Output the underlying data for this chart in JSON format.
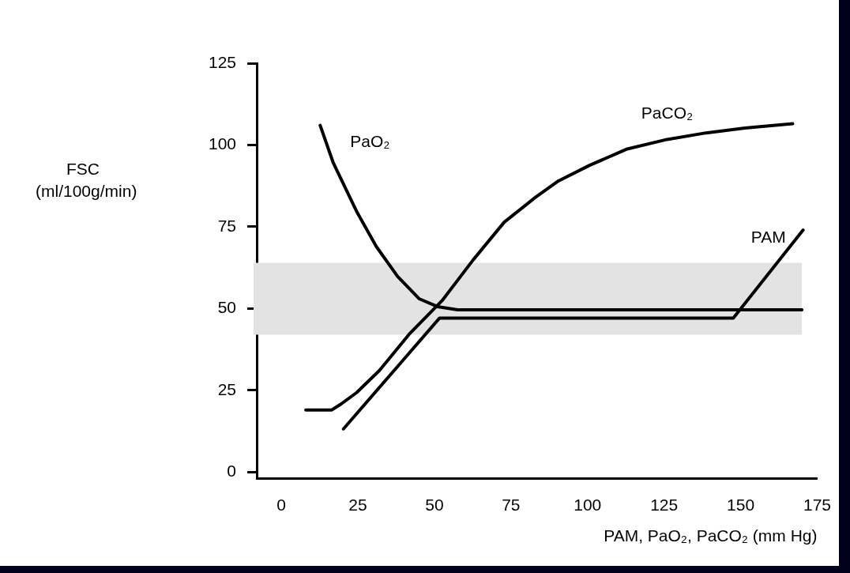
{
  "chart_data": {
    "type": "line",
    "xlabel": "PAM, PaO₂, PaCO₂ (mm Hg)",
    "ylabel": "FSC (ml/100g/min)",
    "xlim": [
      -8,
      175
    ],
    "xticks": [
      0,
      25,
      50,
      75,
      100,
      125,
      150,
      175
    ],
    "ylim": [
      -2,
      125
    ],
    "yticks": [
      0,
      25,
      50,
      75,
      100,
      125
    ],
    "grid": false,
    "legend": false,
    "marker": "none",
    "line_style": "solid",
    "bands": [
      {
        "axis": "y",
        "from": 42,
        "to": 64,
        "color": "#e3e3e3"
      }
    ],
    "series": [
      {
        "name": "PaO₂",
        "color": "#000000",
        "x": [
          12.7,
          17,
          24.6,
          31,
          38,
          45,
          51,
          57.6,
          170
        ],
        "values": [
          106,
          94.5,
          79.7,
          69,
          59.8,
          53,
          50.6,
          49.6,
          49.6
        ]
      },
      {
        "name": "PaCO₂",
        "color": "#000000",
        "x": [
          8,
          16.5,
          19.5,
          24.6,
          32,
          42,
          52.5,
          62.6,
          72.8,
          83,
          90.5,
          100.7,
          113,
          126,
          138.7,
          151.4,
          167
        ],
        "values": [
          19,
          19,
          20.8,
          24.3,
          31,
          42.4,
          52.4,
          64.8,
          76.4,
          84,
          89,
          93.8,
          98.8,
          101.7,
          103.7,
          105.2,
          106.5
        ]
      },
      {
        "name": "PAM",
        "color": "#000000",
        "x": [
          20.3,
          51.7,
          147.6,
          170.4
        ],
        "values": [
          13.2,
          47.1,
          47.1,
          74
        ]
      }
    ]
  }
}
